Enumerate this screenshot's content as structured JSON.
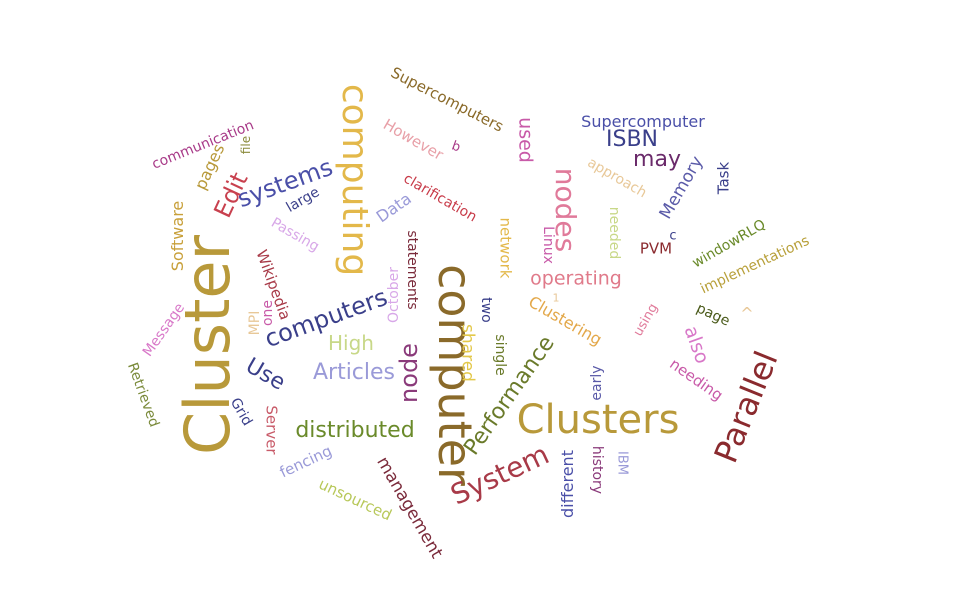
{
  "words": [
    {
      "text": "Cluster",
      "color": "#b8993a"
    },
    {
      "text": "computer",
      "color": "#8a6a2a"
    },
    {
      "text": "Clusters",
      "color": "#b8993a"
    },
    {
      "text": "computing",
      "color": "#e3b84a"
    },
    {
      "text": "Parallel",
      "color": "#8a2a2e"
    },
    {
      "text": "System",
      "color": "#a83a48"
    },
    {
      "text": "nodes",
      "color": "#e07a9a"
    },
    {
      "text": "node",
      "color": "#8a3a7a"
    },
    {
      "text": "computers",
      "color": "#3a3f8a"
    },
    {
      "text": "Performance",
      "color": "#6a7a2a"
    },
    {
      "text": "systems",
      "color": "#4a4fa8"
    },
    {
      "text": "Edit",
      "color": "#c8404e"
    },
    {
      "text": "distributed",
      "color": "#6a8a2a"
    },
    {
      "text": "Articles",
      "color": "#9a9ad8"
    },
    {
      "text": "High",
      "color": "#c8d888"
    },
    {
      "text": "Use",
      "color": "#3a3f8a"
    },
    {
      "text": "may",
      "color": "#6a2a6a"
    },
    {
      "text": "ISBN",
      "color": "#3a3f8a"
    },
    {
      "text": "operating",
      "color": "#e07a8a"
    },
    {
      "text": "shared",
      "color": "#e3c84a"
    },
    {
      "text": "also",
      "color": "#d878c8"
    },
    {
      "text": "Software",
      "color": "#c8a03a"
    },
    {
      "text": "used",
      "color": "#c85aa8"
    },
    {
      "text": "management",
      "color": "#7a2a3a"
    },
    {
      "text": "Memory",
      "color": "#5a5aa8"
    },
    {
      "text": "Clustering",
      "color": "#e3a84a"
    },
    {
      "text": "Supercomputer",
      "color": "#4a4fa8"
    },
    {
      "text": "Supercomputers",
      "color": "#8a6a2a"
    },
    {
      "text": "implementations",
      "color": "#b8a03a"
    },
    {
      "text": "different",
      "color": "#4a4fa8"
    },
    {
      "text": "pages",
      "color": "#b8993a"
    },
    {
      "text": "communication",
      "color": "#a83a88"
    },
    {
      "text": "Message",
      "color": "#d878c8"
    },
    {
      "text": "Retrieved",
      "color": "#7a8a3a"
    },
    {
      "text": "Wikipedia",
      "color": "#a83a48"
    },
    {
      "text": "Server",
      "color": "#c85a68"
    },
    {
      "text": "fencing",
      "color": "#9a9ad8"
    },
    {
      "text": "unsourced",
      "color": "#b8c85a"
    },
    {
      "text": "needing",
      "color": "#c85aa8"
    },
    {
      "text": "approach",
      "color": "#e8c898"
    },
    {
      "text": "clarification",
      "color": "#c83a48"
    },
    {
      "text": "However",
      "color": "#e8a0a8"
    },
    {
      "text": "network",
      "color": "#e3b84a"
    },
    {
      "text": "Data",
      "color": "#9a9ad8"
    },
    {
      "text": "Passing",
      "color": "#d8a8e8"
    },
    {
      "text": "large",
      "color": "#3a3f8a"
    },
    {
      "text": "MPI",
      "color": "#e8c898"
    },
    {
      "text": "one",
      "color": "#c85aa8"
    },
    {
      "text": "October",
      "color": "#d8a8e8"
    },
    {
      "text": "statements",
      "color": "#7a2a3a"
    },
    {
      "text": "two",
      "color": "#3a3f8a"
    },
    {
      "text": "single",
      "color": "#6a7a2a"
    },
    {
      "text": "early",
      "color": "#5a5aa8"
    },
    {
      "text": "history",
      "color": "#8a3a7a"
    },
    {
      "text": "IBM",
      "color": "#9a9ad8"
    },
    {
      "text": "Linux",
      "color": "#c85aa8"
    },
    {
      "text": "needed",
      "color": "#c8d888"
    },
    {
      "text": "PVM",
      "color": "#8a2a2e"
    },
    {
      "text": "windowRLQ",
      "color": "#6a8a2a"
    },
    {
      "text": "Task",
      "color": "#3a3f8a"
    },
    {
      "text": "using",
      "color": "#e07a9a"
    },
    {
      "text": "page",
      "color": "#4a5a1a"
    },
    {
      "text": "Grid",
      "color": "#3a3f8a"
    },
    {
      "text": "file",
      "color": "#8a8a3a"
    },
    {
      "text": "b",
      "color": "#a83a88"
    },
    {
      "text": "c",
      "color": "#3a3f8a"
    },
    {
      "text": "1",
      "color": "#e8c898"
    },
    {
      "text": "^",
      "color": "#e8c898"
    }
  ]
}
